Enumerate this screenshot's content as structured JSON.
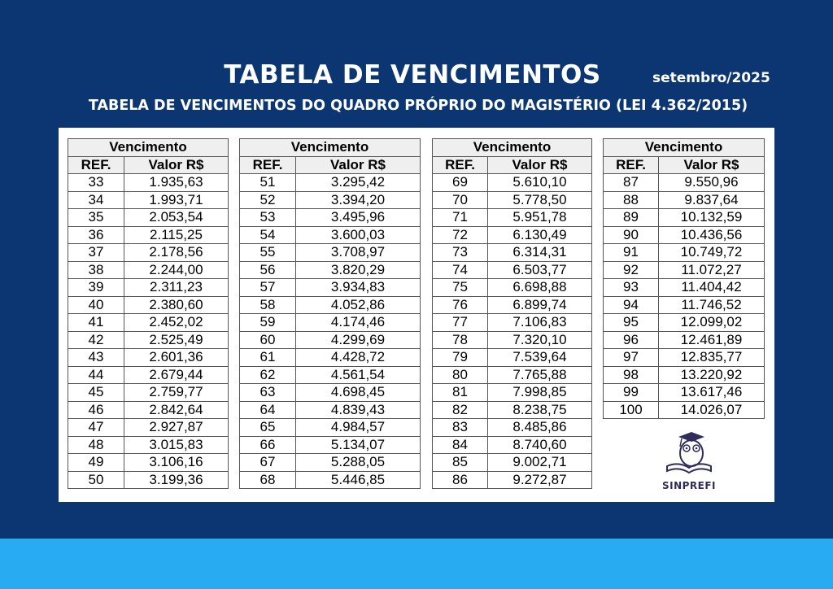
{
  "header": {
    "title": "TABELA DE VENCIMENTOS",
    "date": "setembro/2025",
    "subtitle": "TABELA DE VENCIMENTOS DO QUADRO PRÓPRIO DO MAGISTÉRIO (LEI 4.362/2015)"
  },
  "colors": {
    "background": "#0c3671",
    "bottom_band": "#29abf2",
    "table_header": "#efefef"
  },
  "tables": [
    {
      "group_header": "Vencimento",
      "col_ref": "REF.",
      "col_value": "Valor R$",
      "rows": [
        [
          "33",
          "1.935,63"
        ],
        [
          "34",
          "1.993,71"
        ],
        [
          "35",
          "2.053,54"
        ],
        [
          "36",
          "2.115,25"
        ],
        [
          "37",
          "2.178,56"
        ],
        [
          "38",
          "2.244,00"
        ],
        [
          "39",
          "2.311,23"
        ],
        [
          "40",
          "2.380,60"
        ],
        [
          "41",
          "2.452,02"
        ],
        [
          "42",
          "2.525,49"
        ],
        [
          "43",
          "2.601,36"
        ],
        [
          "44",
          "2.679,44"
        ],
        [
          "45",
          "2.759,77"
        ],
        [
          "46",
          "2.842,64"
        ],
        [
          "47",
          "2.927,87"
        ],
        [
          "48",
          "3.015,83"
        ],
        [
          "49",
          "3.106,16"
        ],
        [
          "50",
          "3.199,36"
        ]
      ]
    },
    {
      "group_header": "Vencimento",
      "col_ref": "REF.",
      "col_value": "Valor R$",
      "rows": [
        [
          "51",
          "3.295,42"
        ],
        [
          "52",
          "3.394,20"
        ],
        [
          "53",
          "3.495,96"
        ],
        [
          "54",
          "3.600,03"
        ],
        [
          "55",
          "3.708,97"
        ],
        [
          "56",
          "3.820,29"
        ],
        [
          "57",
          "3.934,83"
        ],
        [
          "58",
          "4.052,86"
        ],
        [
          "59",
          "4.174,46"
        ],
        [
          "60",
          "4.299,69"
        ],
        [
          "61",
          "4.428,72"
        ],
        [
          "62",
          "4.561,54"
        ],
        [
          "63",
          "4.698,45"
        ],
        [
          "64",
          "4.839,43"
        ],
        [
          "65",
          "4.984,57"
        ],
        [
          "66",
          "5.134,07"
        ],
        [
          "67",
          "5.288,05"
        ],
        [
          "68",
          "5.446,85"
        ]
      ]
    },
    {
      "group_header": "Vencimento",
      "col_ref": "REF.",
      "col_value": "Valor R$",
      "rows": [
        [
          "69",
          "5.610,10"
        ],
        [
          "70",
          "5.778,50"
        ],
        [
          "71",
          "5.951,78"
        ],
        [
          "72",
          "6.130,49"
        ],
        [
          "73",
          "6.314,31"
        ],
        [
          "74",
          "6.503,77"
        ],
        [
          "75",
          "6.698,88"
        ],
        [
          "76",
          "6.899,74"
        ],
        [
          "77",
          "7.106,83"
        ],
        [
          "78",
          "7.320,10"
        ],
        [
          "79",
          "7.539,64"
        ],
        [
          "80",
          "7.765,88"
        ],
        [
          "81",
          "7.998,85"
        ],
        [
          "82",
          "8.238,75"
        ],
        [
          "83",
          "8.485,86"
        ],
        [
          "84",
          "8.740,60"
        ],
        [
          "85",
          "9.002,71"
        ],
        [
          "86",
          "9.272,87"
        ]
      ]
    },
    {
      "group_header": "Vencimento",
      "col_ref": "REF.",
      "col_value": "Valor R$",
      "rows": [
        [
          "87",
          "9.550,96"
        ],
        [
          "88",
          "9.837,64"
        ],
        [
          "89",
          "10.132,59"
        ],
        [
          "90",
          "10.436,56"
        ],
        [
          "91",
          "10.749,72"
        ],
        [
          "92",
          "11.072,27"
        ],
        [
          "93",
          "11.404,42"
        ],
        [
          "94",
          "11.746,52"
        ],
        [
          "95",
          "12.099,02"
        ],
        [
          "96",
          "12.461,89"
        ],
        [
          "97",
          "12.835,77"
        ],
        [
          "98",
          "13.220,92"
        ],
        [
          "99",
          "13.617,46"
        ],
        [
          "100",
          "14.026,07"
        ]
      ]
    }
  ],
  "logo": {
    "text": "SINPREFI",
    "icon": "owl-graduate-book-icon"
  }
}
